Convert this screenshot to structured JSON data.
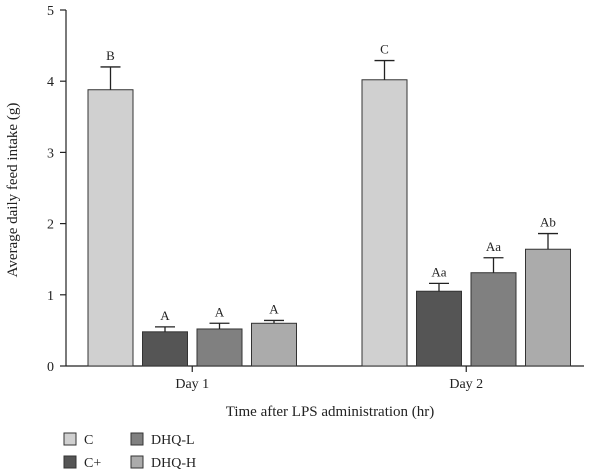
{
  "chart_data": {
    "type": "bar",
    "xlabel": "Time after LPS administration (hr)",
    "ylabel": "Average daily feed intake (g)",
    "ylim": [
      0,
      5
    ],
    "yticks": [
      0,
      1,
      2,
      3,
      4,
      5
    ],
    "categories": [
      "Day 1",
      "Day 2"
    ],
    "series": [
      {
        "name": "C",
        "values": [
          3.88,
          4.02
        ],
        "errors": [
          0.32,
          0.27
        ],
        "labels": [
          "B",
          "C"
        ],
        "color": "#d0d0d0"
      },
      {
        "name": "C+",
        "values": [
          0.48,
          1.05
        ],
        "errors": [
          0.07,
          0.11
        ],
        "labels": [
          "A",
          "Aa"
        ],
        "color": "#555555"
      },
      {
        "name": "DHQ-L",
        "values": [
          0.52,
          1.31
        ],
        "errors": [
          0.08,
          0.21
        ],
        "labels": [
          "A",
          "Aa"
        ],
        "color": "#808080"
      },
      {
        "name": "DHQ-H",
        "values": [
          0.6,
          1.64
        ],
        "errors": [
          0.04,
          0.22
        ],
        "labels": [
          "A",
          "Ab"
        ],
        "color": "#ababab"
      }
    ],
    "legend_position": "bottom-left",
    "grid": false
  }
}
